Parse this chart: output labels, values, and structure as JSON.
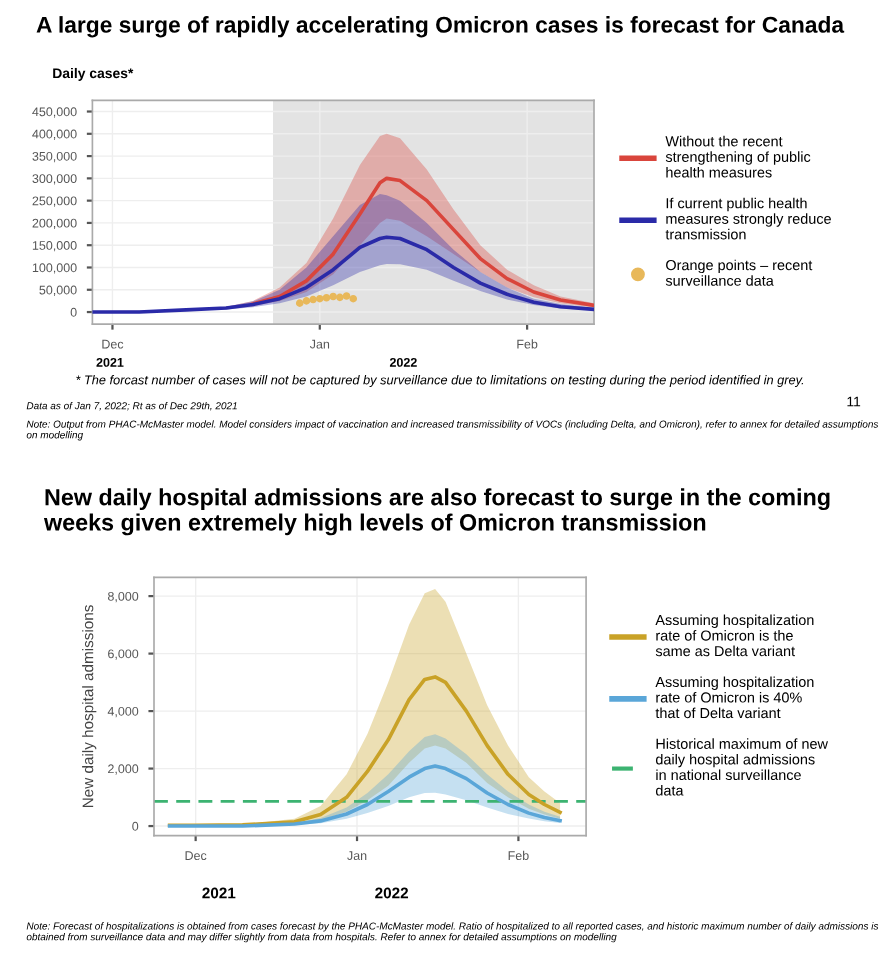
{
  "chart_data": [
    {
      "type": "line",
      "title": "A large surge of rapidly accelerating Omicron cases is forecast for Canada",
      "ylabel": "Daily cases*",
      "x": [
        "2021-11-28",
        "2021-12-05",
        "2021-12-12",
        "2021-12-18",
        "2021-12-22",
        "2021-12-26",
        "2021-12-30",
        "2022-01-03",
        "2022-01-07",
        "2022-01-10",
        "2022-01-11",
        "2022-01-13",
        "2022-01-17",
        "2022-01-21",
        "2022-01-25",
        "2022-01-29",
        "2022-02-02",
        "2022-02-06",
        "2022-02-11"
      ],
      "series": [
        {
          "name": "Without the recent strengthening of public health measures",
          "color": "#d9453c",
          "values": [
            null,
            null,
            null,
            null,
            18000,
            35000,
            70000,
            130000,
            220000,
            290000,
            300000,
            295000,
            250000,
            185000,
            120000,
            75000,
            45000,
            27000,
            15000
          ],
          "upper": [
            2500,
            3000,
            5000,
            12000,
            25000,
            55000,
            110000,
            210000,
            330000,
            395000,
            400000,
            390000,
            320000,
            230000,
            150000,
            95000,
            60000,
            35000,
            20000
          ],
          "lower": [
            1500,
            2000,
            3000,
            7000,
            13000,
            25000,
            45000,
            85000,
            150000,
            200000,
            210000,
            205000,
            170000,
            130000,
            90000,
            55000,
            33000,
            20000,
            10000
          ]
        },
        {
          "name": "If current public health measures strongly reduce transmission",
          "color": "#2a2aa8",
          "values": [
            0,
            0,
            5000,
            9000,
            17000,
            30000,
            55000,
            95000,
            145000,
            165000,
            168000,
            165000,
            140000,
            100000,
            65000,
            40000,
            22000,
            12000,
            6000
          ],
          "upper": [
            2500,
            3000,
            5000,
            12000,
            24000,
            50000,
            100000,
            170000,
            240000,
            265000,
            262000,
            250000,
            200000,
            140000,
            90000,
            55000,
            30000,
            18000,
            9000
          ],
          "lower": [
            1500,
            2000,
            3000,
            6000,
            11000,
            20000,
            35000,
            60000,
            90000,
            105000,
            108000,
            107000,
            95000,
            70000,
            47000,
            28000,
            16000,
            8000,
            4000
          ]
        },
        {
          "name": "Orange points – recent surveillance data",
          "type": "scatter",
          "color": "#e8b85a",
          "x": [
            "2021-12-29",
            "2021-12-30",
            "2021-12-31",
            "2022-01-01",
            "2022-01-02",
            "2022-01-03",
            "2022-01-04",
            "2022-01-05",
            "2022-01-06"
          ],
          "values": [
            20000,
            25000,
            28000,
            30000,
            32000,
            35000,
            33000,
            36000,
            30000
          ]
        }
      ],
      "bands": [
        {
          "axis": "x",
          "from": "2021-12-25",
          "to": "2022-02-11",
          "color": "#e3e3e3"
        }
      ],
      "xlim": [
        "2021-11-28",
        "2022-02-11"
      ],
      "ylim": [
        -27000,
        475000
      ],
      "xticks": [
        {
          "value": "2021-12-01",
          "label": "Dec"
        },
        {
          "value": "2022-01-01",
          "label": "Jan"
        },
        {
          "value": "2022-02-01",
          "label": "Feb"
        }
      ],
      "yticks": [
        {
          "value": 0,
          "label": "0"
        },
        {
          "value": 50000,
          "label": "50,000"
        },
        {
          "value": 100000,
          "label": "100,000"
        },
        {
          "value": 150000,
          "label": "150,000"
        },
        {
          "value": 200000,
          "label": "200,000"
        },
        {
          "value": 250000,
          "label": "250,000"
        },
        {
          "value": 300000,
          "label": "300,000"
        },
        {
          "value": 350000,
          "label": "350,000"
        },
        {
          "value": 400000,
          "label": "400,000"
        },
        {
          "value": 450000,
          "label": "450,000"
        }
      ],
      "grid": true,
      "legend": "right",
      "annotations": [
        "2021",
        "2022",
        "* The forcast number of cases will not be captured by surveillance due to limitations on testing during the period identified in grey.",
        "Data as of Jan 7, 2022; Rt as of Dec 29th, 2021",
        "Note: Output from PHAC-McMaster model. Model considers impact of vaccination and increased transmissibility of VOCs (including Delta, and Omicron), refer to annex for detailed assumptions on modelling",
        "11"
      ]
    },
    {
      "type": "line",
      "title": "New daily hospital admissions are also forecast to surge in the coming weeks given extremely high levels of Omicron transmission",
      "ylabel": "New daily hospital admissions",
      "x": [
        "2021-11-26",
        "2021-12-01",
        "2021-12-10",
        "2021-12-20",
        "2021-12-25",
        "2021-12-30",
        "2022-01-03",
        "2022-01-07",
        "2022-01-11",
        "2022-01-14",
        "2022-01-16",
        "2022-01-18",
        "2022-01-22",
        "2022-01-26",
        "2022-01-30",
        "2022-02-03",
        "2022-02-06",
        "2022-02-09"
      ],
      "series": [
        {
          "name": "Assuming hospitalization rate of Omicron is the same as Delta variant",
          "color": "#c9a227",
          "values": [
            30,
            30,
            40,
            150,
            400,
            1000,
            1900,
            3000,
            4400,
            5100,
            5190,
            5000,
            4000,
            2800,
            1800,
            1100,
            750,
            480
          ],
          "upper": [
            40,
            40,
            60,
            250,
            700,
            1800,
            3200,
            5000,
            7000,
            8100,
            8250,
            7800,
            6000,
            4200,
            2800,
            1700,
            1200,
            800
          ],
          "lower": [
            20,
            20,
            30,
            80,
            200,
            500,
            900,
            1400,
            2200,
            2700,
            2800,
            2700,
            2200,
            1500,
            1000,
            600,
            400,
            250
          ]
        },
        {
          "name": "Assuming hospitalization rate of Omicron is 40% that of Delta variant",
          "color": "#5aa6d8",
          "values": [
            0,
            0,
            0,
            70,
            180,
            420,
            750,
            1200,
            1700,
            2000,
            2090,
            2000,
            1650,
            1150,
            750,
            450,
            300,
            190
          ],
          "upper": [
            20,
            20,
            30,
            100,
            280,
            650,
            1150,
            1800,
            2600,
            3100,
            3190,
            3050,
            2500,
            1800,
            1200,
            750,
            500,
            320
          ],
          "lower": [
            10,
            10,
            15,
            40,
            100,
            250,
            450,
            700,
            1000,
            1150,
            1160,
            1100,
            900,
            650,
            420,
            260,
            170,
            110
          ]
        }
      ],
      "ref_lines": [
        {
          "axis": "y",
          "value": 860,
          "label": "Historical maximum of new daily hospital admissions in national surveillance data",
          "color": "#3cb371",
          "line_style": "dashed"
        }
      ],
      "xlim": [
        "2021-11-23",
        "2022-02-14"
      ],
      "ylim": [
        -330,
        8650
      ],
      "xticks": [
        {
          "value": "2021-12-01",
          "label": "Dec"
        },
        {
          "value": "2022-01-01",
          "label": "Jan"
        },
        {
          "value": "2022-02-01",
          "label": "Feb"
        }
      ],
      "yticks": [
        {
          "value": 0,
          "label": "0"
        },
        {
          "value": 2000,
          "label": "2,000"
        },
        {
          "value": 4000,
          "label": "4,000"
        },
        {
          "value": 6000,
          "label": "6,000"
        },
        {
          "value": 8000,
          "label": "8,000"
        }
      ],
      "grid": true,
      "legend": "right",
      "annotations": [
        "2021",
        "2022",
        "Note: Forecast of hospitalizations is obtained from cases forecast by the PHAC-McMaster model. Ratio of hospitalized to all reported cases, and historic maximum number of daily admissions is obtained from surveillance data and may differ slightly from data from hospitals. Refer to annex for detailed assumptions on modelling"
      ]
    }
  ]
}
